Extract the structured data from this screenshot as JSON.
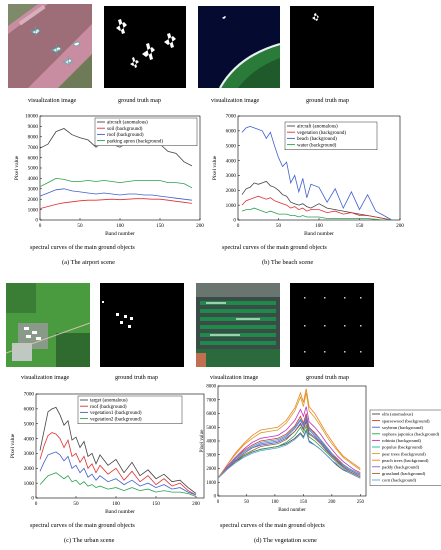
{
  "panels": [
    {
      "id": "a",
      "captions": {
        "visualization": "visualization image",
        "ground_truth": "ground truth map",
        "spectral": "spectral curves of the main ground objects",
        "scene": "(a) The airport scene"
      },
      "chart_data": {
        "type": "line",
        "xlabel": "Band number",
        "ylabel": "Pixel value",
        "xlim": [
          0,
          200
        ],
        "ylim": [
          0,
          10000
        ],
        "xticks": [
          "0",
          "50",
          "100",
          "150",
          "200"
        ],
        "yticks": [
          "0",
          "1000",
          "2000",
          "3000",
          "4000",
          "5000",
          "6000",
          "7000",
          "8000",
          "9000",
          "10000"
        ],
        "legend_position": "top-right",
        "x": [
          0,
          10,
          20,
          30,
          40,
          50,
          60,
          70,
          80,
          90,
          100,
          110,
          120,
          130,
          140,
          150,
          160,
          170,
          180,
          190
        ],
        "series": [
          {
            "name": "aircraft (anomalous)",
            "color": "#444444",
            "values": [
              6900,
              7300,
              8500,
              8800,
              8200,
              7900,
              7700,
              7000,
              7600,
              7300,
              7000,
              7500,
              7400,
              7200,
              7300,
              7300,
              6600,
              6400,
              5600,
              5200
            ]
          },
          {
            "name": "soil (background)",
            "color": "#e03030",
            "values": [
              1100,
              1300,
              1500,
              1650,
              1750,
              1850,
              1900,
              1900,
              1950,
              2000,
              1950,
              2000,
              2050,
              2050,
              2000,
              2000,
              1900,
              1800,
              1700,
              1600
            ]
          },
          {
            "name": "roof (background)",
            "color": "#4060d0",
            "values": [
              2300,
              2600,
              2900,
              3000,
              2800,
              2700,
              2600,
              2500,
              2600,
              2500,
              2400,
              2500,
              2500,
              2400,
              2400,
              2300,
              2200,
              2100,
              2000,
              1900
            ]
          },
          {
            "name": "parking apron (background)",
            "color": "#2aa050",
            "values": [
              3200,
              3600,
              4000,
              3900,
              3700,
              3700,
              3800,
              3700,
              3800,
              3700,
              3600,
              3700,
              3800,
              3800,
              3800,
              3800,
              3600,
              3600,
              3500,
              3100
            ]
          }
        ]
      }
    },
    {
      "id": "b",
      "captions": {
        "visualization": "visualization image",
        "ground_truth": "ground truth map",
        "spectral": "spectral curves of the main ground objects",
        "scene": "(b) The beach scene"
      },
      "chart_data": {
        "type": "line",
        "xlabel": "Band number",
        "ylabel": "Pixel value",
        "xlim": [
          0,
          200
        ],
        "ylim": [
          0,
          7000
        ],
        "xticks": [
          "0",
          "50",
          "100",
          "150",
          "200"
        ],
        "yticks": [
          "0",
          "1000",
          "2000",
          "3000",
          "4000",
          "5000",
          "6000",
          "7000"
        ],
        "legend_position": "top-right",
        "x": [
          5,
          10,
          15,
          20,
          25,
          30,
          35,
          40,
          45,
          50,
          55,
          60,
          65,
          70,
          75,
          80,
          85,
          90,
          100,
          110,
          120,
          130,
          140,
          150,
          160,
          170,
          180,
          190
        ],
        "series": [
          {
            "name": "aircraft (anomalous)",
            "color": "#444444",
            "values": [
              1700,
              2100,
              2200,
              2500,
              2400,
              2500,
              2600,
              2300,
              2200,
              2000,
              1700,
              1600,
              1200,
              1100,
              1000,
              1100,
              900,
              800,
              1100,
              800,
              700,
              600,
              500,
              400,
              300,
              200,
              100,
              0
            ]
          },
          {
            "name": "vegetation (background)",
            "color": "#e03030",
            "values": [
              1000,
              1300,
              1400,
              1500,
              1600,
              1500,
              1400,
              1500,
              1300,
              1200,
              1100,
              1000,
              800,
              900,
              700,
              800,
              600,
              700,
              700,
              500,
              600,
              400,
              500,
              300,
              300,
              200,
              100,
              0
            ]
          },
          {
            "name": "beach (background)",
            "color": "#4060d0",
            "values": [
              5900,
              6200,
              6300,
              6200,
              6100,
              6000,
              5500,
              5900,
              5000,
              4200,
              3600,
              3900,
              2500,
              3000,
              1900,
              2800,
              1500,
              2400,
              2200,
              1200,
              2100,
              800,
              1900,
              700,
              1700,
              600,
              300,
              0
            ]
          },
          {
            "name": "water (background)",
            "color": "#2aa050",
            "values": [
              600,
              700,
              700,
              800,
              700,
              600,
              500,
              600,
              500,
              400,
              400,
              400,
              300,
              300,
              200,
              300,
              200,
              200,
              200,
              100,
              100,
              100,
              100,
              100,
              100,
              50,
              0,
              0
            ]
          }
        ]
      }
    },
    {
      "id": "c",
      "captions": {
        "visualization": "visualization image",
        "ground_truth": "ground truth map",
        "spectral": "spectral curves of the main ground objects",
        "scene": "(c) The urban scene"
      },
      "chart_data": {
        "type": "line",
        "xlabel": "Band number",
        "ylabel": "Pixel value",
        "xlim": [
          0,
          210
        ],
        "ylim": [
          0,
          7000
        ],
        "xticks": [
          "0",
          "50",
          "100",
          "150",
          "200"
        ],
        "yticks": [
          "0",
          "1000",
          "2000",
          "3000",
          "4000",
          "5000",
          "6000",
          "7000"
        ],
        "legend_position": "top-right",
        "x": [
          5,
          10,
          15,
          20,
          25,
          30,
          35,
          40,
          45,
          50,
          55,
          60,
          65,
          70,
          75,
          80,
          90,
          100,
          110,
          120,
          130,
          140,
          150,
          160,
          170,
          180,
          190,
          200
        ],
        "series": [
          {
            "name": "target (anomalous)",
            "color": "#444444",
            "values": [
              3200,
              4500,
              5800,
              6000,
              6100,
              5600,
              4900,
              5200,
              3900,
              4100,
              3400,
              3800,
              2800,
              3000,
              2300,
              2900,
              2200,
              2600,
              1700,
              2400,
              1500,
              1900,
              1300,
              1600,
              1100,
              1200,
              700,
              300
            ]
          },
          {
            "name": "roof (background)",
            "color": "#e03030",
            "values": [
              2600,
              3500,
              4200,
              4400,
              4300,
              4000,
              3400,
              3900,
              2800,
              3000,
              2400,
              2800,
              2000,
              2300,
              1700,
              2200,
              1600,
              2000,
              1200,
              1800,
              1100,
              1500,
              900,
              1300,
              800,
              1000,
              500,
              200
            ]
          },
          {
            "name": "vegetation1 (background)",
            "color": "#4060d0",
            "values": [
              1800,
              2400,
              2900,
              3000,
              3100,
              2900,
              2500,
              2800,
              2000,
              2200,
              1700,
              2000,
              1400,
              1600,
              1200,
              1500,
              1100,
              1300,
              900,
              1200,
              800,
              1000,
              700,
              900,
              600,
              700,
              400,
              200
            ]
          },
          {
            "name": "vegetation2 (background)",
            "color": "#2aa050",
            "values": [
              900,
              1200,
              1500,
              1600,
              1700,
              1500,
              1300,
              1500,
              1100,
              1200,
              900,
              1100,
              800,
              900,
              700,
              800,
              600,
              700,
              500,
              700,
              500,
              600,
              400,
              500,
              400,
              400,
              300,
              100
            ]
          }
        ]
      }
    },
    {
      "id": "d",
      "captions": {
        "visualization": "visualization image",
        "ground_truth": "ground truth map",
        "spectral": "spectral curves of the main ground objects",
        "scene": "(d) The vegetation scene"
      },
      "chart_data": {
        "type": "line",
        "xlabel": "Band number",
        "ylabel": "Pixel value",
        "xlim": [
          0,
          260
        ],
        "ylim": [
          0,
          8000
        ],
        "xticks": [
          "0",
          "50",
          "100",
          "150",
          "200",
          "250"
        ],
        "yticks": [
          "0",
          "1000",
          "2000",
          "3000",
          "4000",
          "5000",
          "6000",
          "7000",
          "8000"
        ],
        "legend_position": "right",
        "x": [
          0,
          15,
          30,
          45,
          60,
          75,
          90,
          105,
          120,
          135,
          145,
          150,
          155,
          160,
          170,
          180,
          190,
          200,
          210,
          220,
          230,
          240,
          250
        ],
        "series": [
          {
            "name": "elm (anomalous)",
            "color": "#444444",
            "values": [
              1300,
              1900,
              2500,
              2900,
              3200,
              3400,
              3500,
              3600,
              3800,
              4200,
              4600,
              4300,
              4800,
              4000,
              3700,
              3400,
              3000,
              2600,
              2200,
              1900,
              1700,
              1500,
              1300
            ]
          },
          {
            "name": "sparsewood (background)",
            "color": "#e03030",
            "values": [
              1300,
              2000,
              2700,
              3300,
              3700,
              4000,
              4100,
              4200,
              4500,
              5100,
              5800,
              5300,
              6000,
              5000,
              4600,
              4100,
              3600,
              3100,
              2700,
              2300,
              2000,
              1800,
              1600
            ]
          },
          {
            "name": "soybean (background)",
            "color": "#4060d0",
            "values": [
              1300,
              2000,
              2600,
              3100,
              3500,
              3700,
              3800,
              3900,
              4200,
              4700,
              5300,
              4900,
              5500,
              4600,
              4300,
              3900,
              3400,
              2900,
              2500,
              2200,
              1900,
              1700,
              1500
            ]
          },
          {
            "name": "sophora japonica (background)",
            "color": "#2aa050",
            "values": [
              1300,
              1900,
              2400,
              2900,
              3200,
              3400,
              3500,
              3600,
              3900,
              4400,
              5000,
              4600,
              5100,
              4300,
              4000,
              3600,
              3200,
              2800,
              2400,
              2100,
              1800,
              1600,
              1400
            ]
          },
          {
            "name": "robinia (background)",
            "color": "#c030c0",
            "values": [
              1300,
              2100,
              2800,
              3400,
              3900,
              4200,
              4300,
              4400,
              4800,
              5500,
              6300,
              5800,
              6500,
              5400,
              5000,
              4500,
              3900,
              3400,
              2900,
              2500,
              2200,
              1900,
              1700
            ]
          },
          {
            "name": "populus (background)",
            "color": "#20b0b0",
            "values": [
              1300,
              2000,
              2700,
              3200,
              3600,
              3900,
              4000,
              4100,
              4400,
              5000,
              5600,
              5200,
              5800,
              4900,
              4500,
              4100,
              3600,
              3100,
              2600,
              2300,
              2000,
              1800,
              1600
            ]
          },
          {
            "name": "pear trees (background)",
            "color": "#d0a020",
            "values": [
              1300,
              2200,
              3000,
              3700,
              4200,
              4600,
              4700,
              4800,
              5300,
              6200,
              7200,
              6500,
              7500,
              6200,
              5700,
              5100,
              4400,
              3800,
              3300,
              2800,
              2500,
              2200,
              1900
            ]
          },
          {
            "name": "peach trees (background)",
            "color": "#f08020",
            "values": [
              1300,
              2200,
              3100,
              3800,
              4400,
              4800,
              4900,
              5000,
              5500,
              6400,
              7500,
              6800,
              7800,
              6500,
              6000,
              5300,
              4600,
              4000,
              3400,
              2900,
              2600,
              2300,
              2000
            ]
          },
          {
            "name": "paddy (background)",
            "color": "#8060d0",
            "values": [
              1300,
              2000,
              2600,
              3100,
              3500,
              3800,
              3900,
              4000,
              4300,
              4900,
              5500,
              5100,
              5700,
              4800,
              4400,
              4000,
              3500,
              3000,
              2600,
              2200,
              1900,
              1700,
              1500
            ]
          },
          {
            "name": "grassland (background)",
            "color": "#a06030",
            "values": [
              1300,
              1900,
              2500,
              3000,
              3300,
              3600,
              3700,
              3800,
              4100,
              4700,
              5200,
              4800,
              5400,
              4500,
              4200,
              3800,
              3300,
              2900,
              2500,
              2100,
              1800,
              1600,
              1400
            ]
          },
          {
            "name": "corn (background)",
            "color": "#60a0e0",
            "values": [
              1300,
              1900,
              2400,
              2800,
              3100,
              3300,
              3400,
              3500,
              3700,
              4100,
              4500,
              4200,
              4700,
              3900,
              3700,
              3400,
              3000,
              2600,
              2300,
              2000,
              1700,
              1500,
              1300
            ]
          }
        ]
      }
    }
  ]
}
